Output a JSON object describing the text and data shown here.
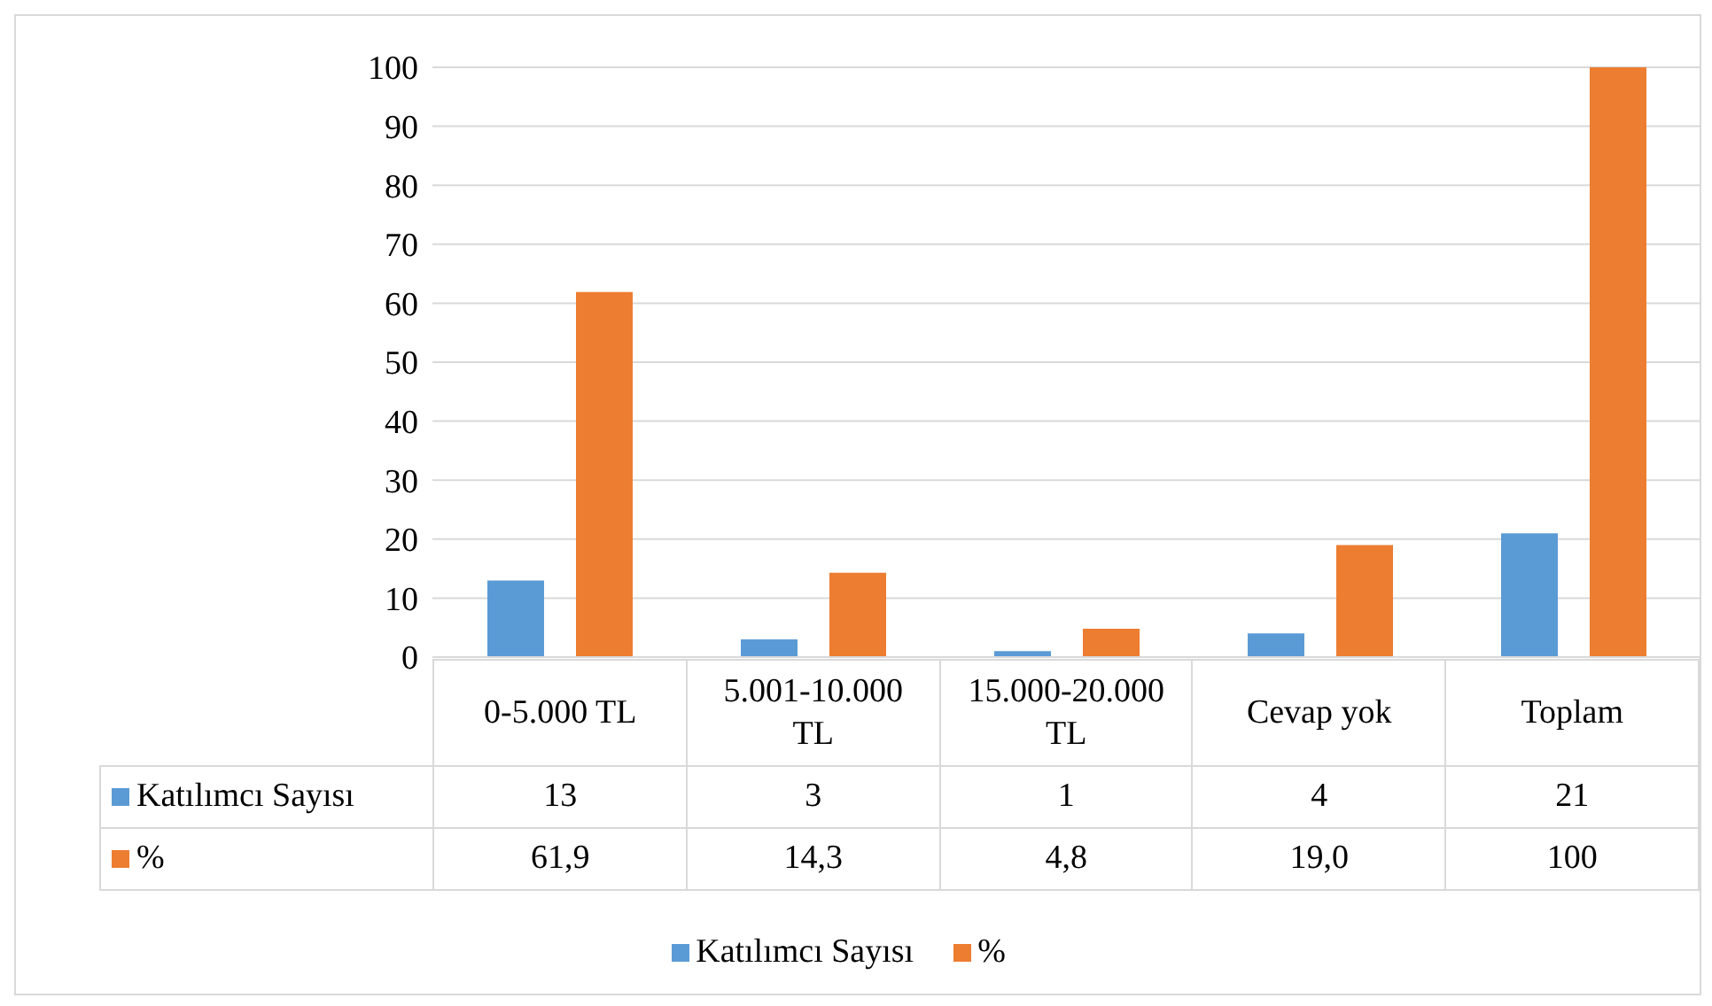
{
  "chart_data": {
    "type": "bar",
    "categories": [
      "0-5.000 TL",
      "5.001-10.000 TL",
      "15.000-20.000 TL",
      "Cevap yok",
      "Toplam"
    ],
    "series": [
      {
        "name": "Katılımcı Sayısı",
        "color": "#5b9bd5",
        "values": [
          13,
          3,
          1,
          4,
          21
        ],
        "value_labels": [
          "13",
          "3",
          "1",
          "4",
          "21"
        ]
      },
      {
        "name": "%",
        "color": "#ed7d31",
        "values": [
          61.9,
          14.3,
          4.8,
          19.0,
          100
        ],
        "value_labels": [
          "61,9",
          "14,3",
          "4,8",
          "19,0",
          "100"
        ]
      }
    ],
    "ylim": [
      0,
      100
    ],
    "yticks": [
      0,
      10,
      20,
      30,
      40,
      50,
      60,
      70,
      80,
      90,
      100
    ],
    "grid": "y",
    "legend": "bottom"
  }
}
